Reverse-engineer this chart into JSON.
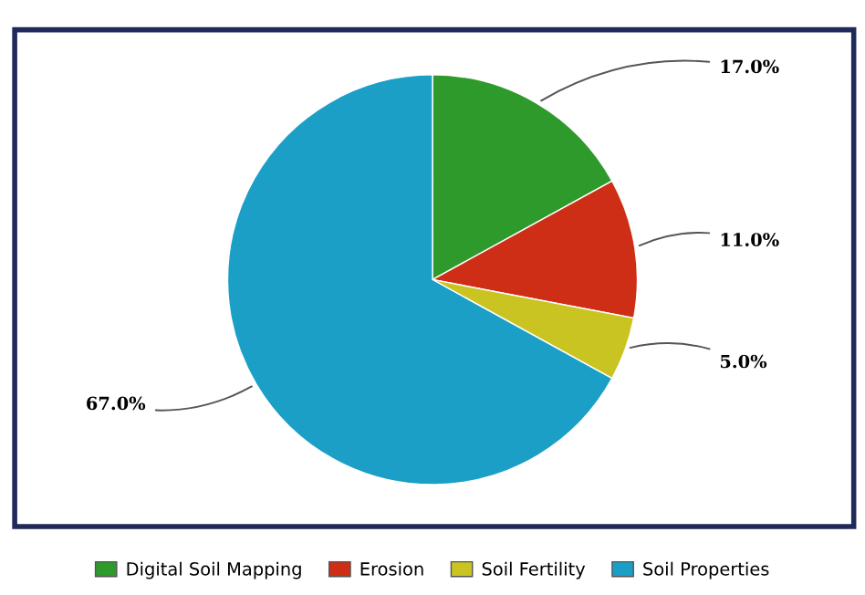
{
  "chart_data": {
    "type": "pie",
    "categories": [
      "Digital Soil Mapping",
      "Erosion",
      "Soil Fertility",
      "Soil Properties"
    ],
    "values": [
      17,
      11,
      5,
      67
    ],
    "colors": [
      "#2f9a2c",
      "#cf2e16",
      "#c9c422",
      "#1b9fc6"
    ],
    "value_labels": [
      "17.0%",
      "11.0%",
      "5.0%",
      "67.0%"
    ],
    "legend": "bottom"
  }
}
